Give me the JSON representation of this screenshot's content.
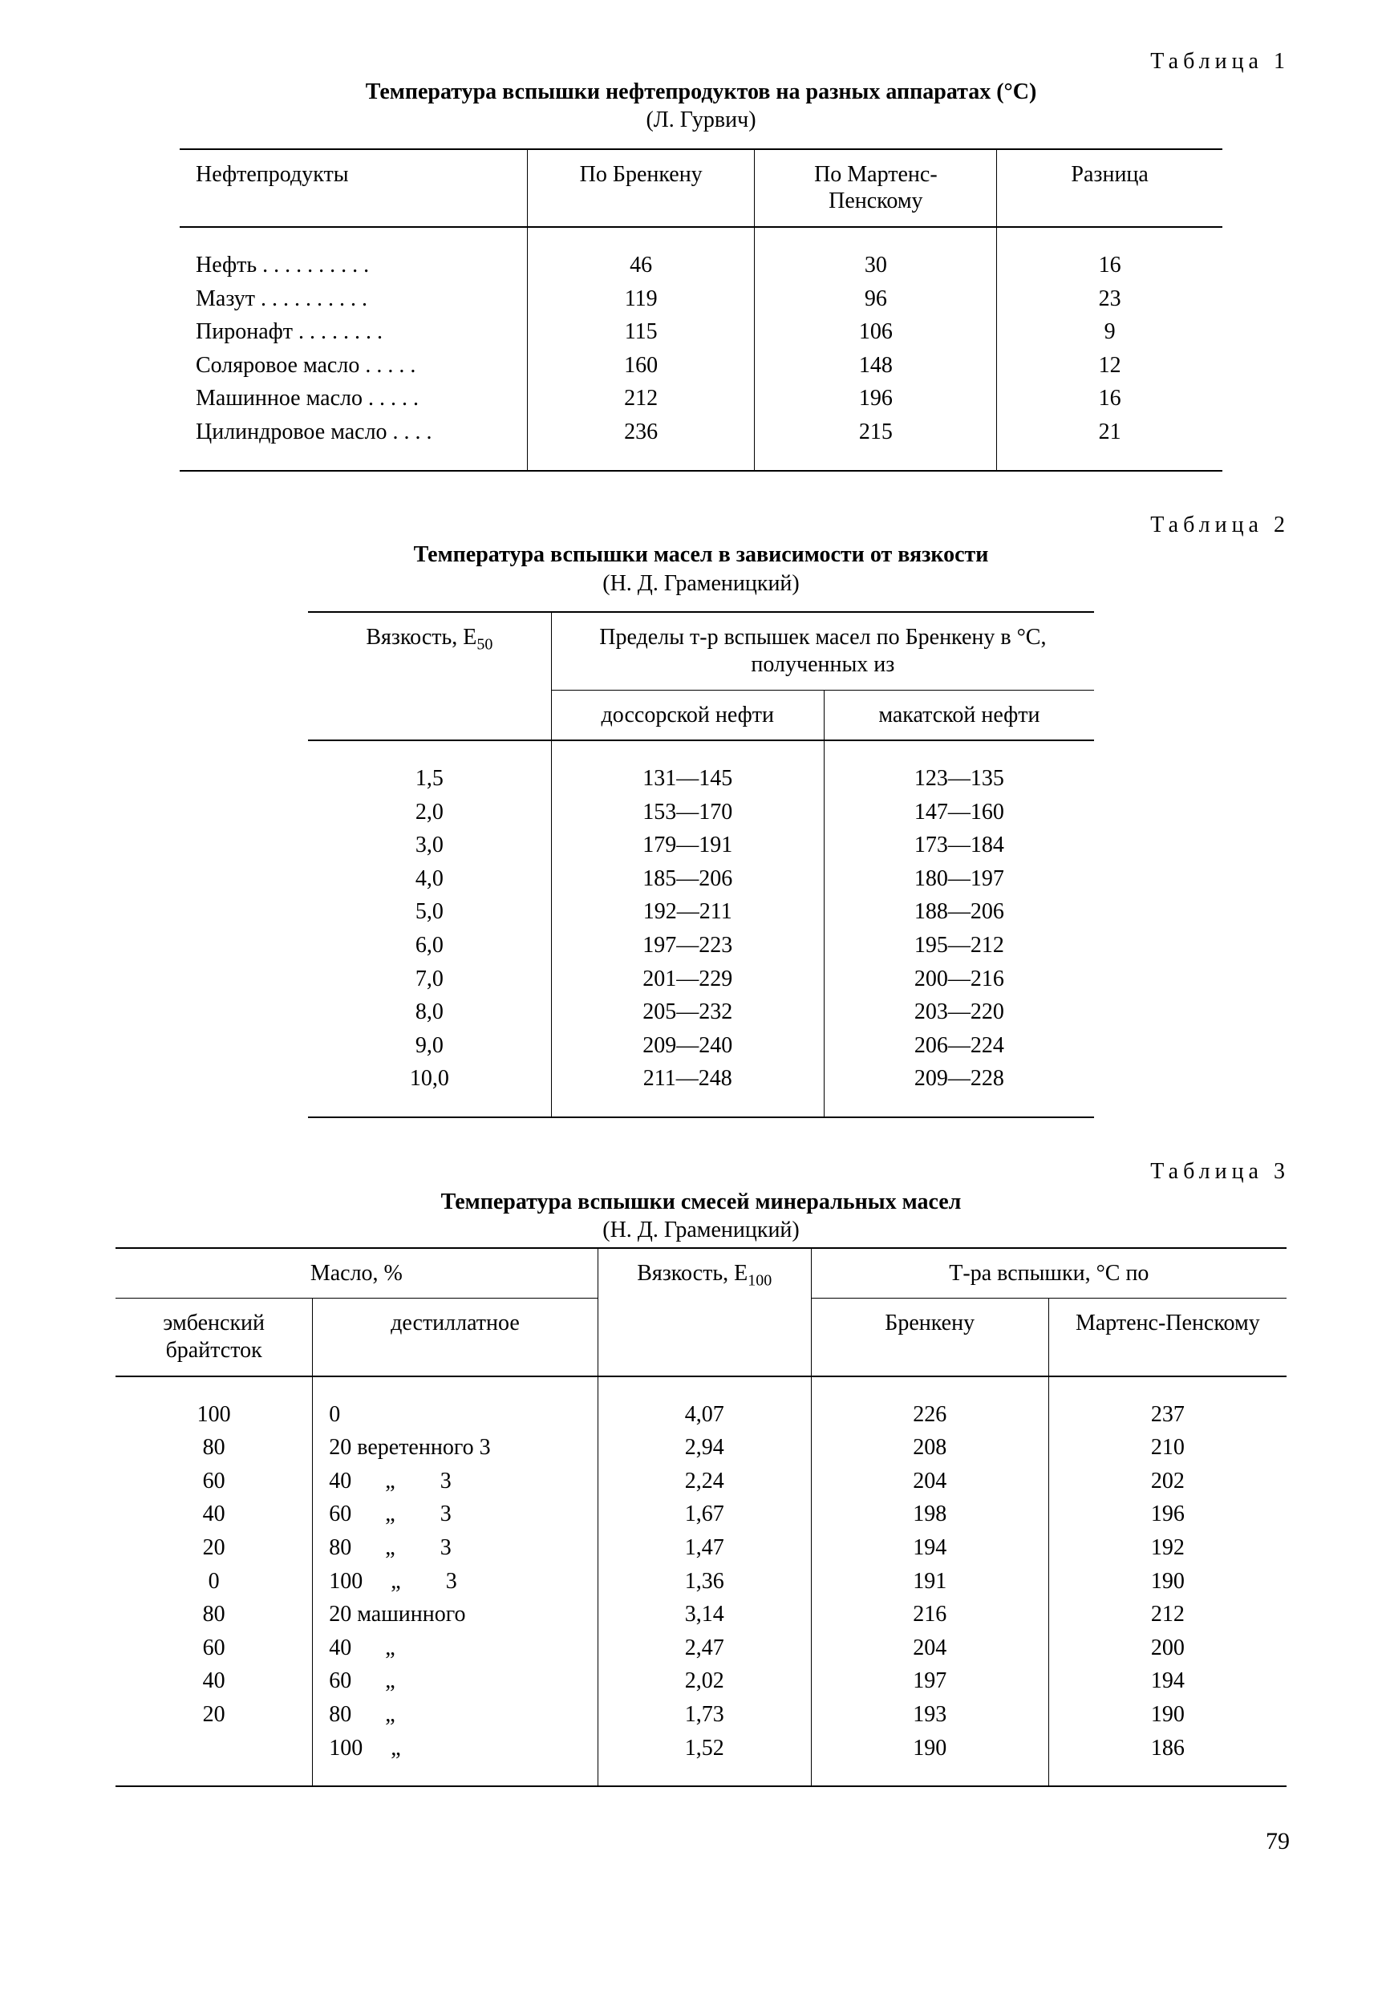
{
  "page_number": "79",
  "table1": {
    "label": "Таблица 1",
    "title": "Температура вспышки нефтепродуктов на разных аппаратах (°С)",
    "author": "(Л. Гурвич)",
    "headers": [
      "Нефтепродукты",
      "По Бренкену",
      "По Мартенс-Пенскому",
      "Разница"
    ],
    "rows": [
      {
        "name": "Нефть",
        "c2": "46",
        "c3": "30",
        "c4": "16"
      },
      {
        "name": "Мазут",
        "c2": "119",
        "c3": "96",
        "c4": "23"
      },
      {
        "name": "Пиронафт",
        "c2": "115",
        "c3": "106",
        "c4": "9"
      },
      {
        "name": "Соляровое масло",
        "c2": "160",
        "c3": "148",
        "c4": "12"
      },
      {
        "name": "Машинное масло",
        "c2": "212",
        "c3": "196",
        "c4": "16"
      },
      {
        "name": "Цилиндровое масло",
        "c2": "236",
        "c3": "215",
        "c4": "21"
      }
    ]
  },
  "table2": {
    "label": "Таблица 2",
    "title": "Температура вспышки масел в зависимости от вязкости",
    "author": "(Н. Д. Граменицкий)",
    "h_visc_pre": "Вязкость, E",
    "h_visc_sub": "50",
    "h_span2": "Пределы т-р вспышек масел по Бренкену в °С, полученных из",
    "h_c2": "доссорской нефти",
    "h_c3": "макатской нефти",
    "rows": [
      {
        "v": "1,5",
        "d": "131—145",
        "m": "123—135"
      },
      {
        "v": "2,0",
        "d": "153—170",
        "m": "147—160"
      },
      {
        "v": "3,0",
        "d": "179—191",
        "m": "173—184"
      },
      {
        "v": "4,0",
        "d": "185—206",
        "m": "180—197"
      },
      {
        "v": "5,0",
        "d": "192—211",
        "m": "188—206"
      },
      {
        "v": "6,0",
        "d": "197—223",
        "m": "195—212"
      },
      {
        "v": "7,0",
        "d": "201—229",
        "m": "200—216"
      },
      {
        "v": "8,0",
        "d": "205—232",
        "m": "203—220"
      },
      {
        "v": "9,0",
        "d": "209—240",
        "m": "206—224"
      },
      {
        "v": "10,0",
        "d": "211—248",
        "m": "209—228"
      }
    ]
  },
  "table3": {
    "label": "Таблица 3",
    "title": "Температура вспышки смесей минеральных масел",
    "author": "(Н. Д. Граменицкий)",
    "h_oil": "Масло, %",
    "h_visc_pre": "Вязкость, E",
    "h_visc_sub": "100",
    "h_flash": "Т-ра вспышки, °С по",
    "h_c1": "эмбенский брайтсток",
    "h_c2": "дестиллатное",
    "h_c4": "Бренкену",
    "h_c5": "Мартенс-Пенскому",
    "rows": [
      {
        "c1": "100",
        "c2": "0",
        "c3": "4,07",
        "c4": "226",
        "c5": "237"
      },
      {
        "c1": "80",
        "c2": "20 веретенного 3",
        "c3": "2,94",
        "c4": "208",
        "c5": "210"
      },
      {
        "c1": "60",
        "c2": "40      „        3",
        "c3": "2,24",
        "c4": "204",
        "c5": "202"
      },
      {
        "c1": "40",
        "c2": "60      „        3",
        "c3": "1,67",
        "c4": "198",
        "c5": "196"
      },
      {
        "c1": "20",
        "c2": "80      „        3",
        "c3": "1,47",
        "c4": "194",
        "c5": "192"
      },
      {
        "c1": "0",
        "c2": "100     „        3",
        "c3": "1,36",
        "c4": "191",
        "c5": "190"
      },
      {
        "c1": "80",
        "c2": "20 машинного",
        "c3": "3,14",
        "c4": "216",
        "c5": "212"
      },
      {
        "c1": "60",
        "c2": "40      „",
        "c3": "2,47",
        "c4": "204",
        "c5": "200"
      },
      {
        "c1": "40",
        "c2": "60      „",
        "c3": "2,02",
        "c4": "197",
        "c5": "194"
      },
      {
        "c1": "20",
        "c2": "80      „",
        "c3": "1,73",
        "c4": "193",
        "c5": "190"
      },
      {
        "c1": "",
        "c2": "100     „",
        "c3": "1,52",
        "c4": "190",
        "c5": "186"
      }
    ]
  }
}
